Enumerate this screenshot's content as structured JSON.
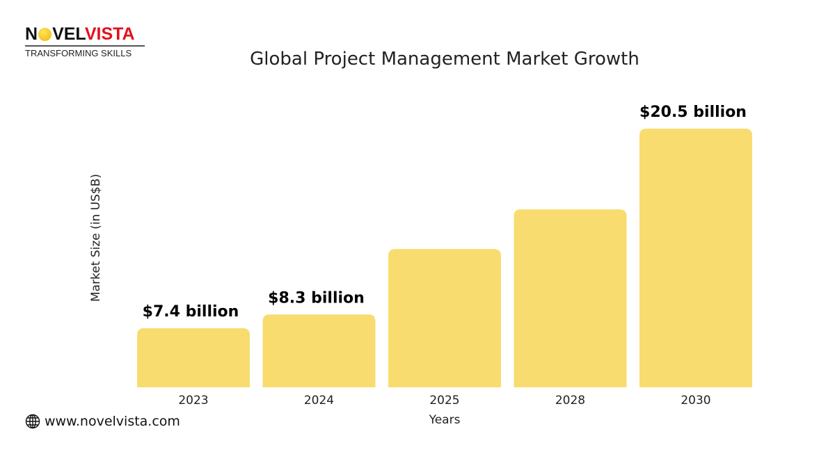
{
  "logo": {
    "name_part1": "N",
    "name_part2": "VEL",
    "name_part3": "VISTA",
    "tagline": "TRANSFORMING SKILLS"
  },
  "website": "www.novelvista.com",
  "chart_data": {
    "type": "bar",
    "title": "Global Project Management Market Growth",
    "xlabel": "Years",
    "ylabel": "Market Size (in US$B)",
    "categories": [
      "2023",
      "2024",
      "2025",
      "2028",
      "2030"
    ],
    "values": [
      7.4,
      8.3,
      12.6,
      15.2,
      20.5
    ],
    "data_labels": [
      "$7.4 billion",
      "$8.3 billion",
      "",
      "",
      "$20.5 billion"
    ],
    "bar_color": "#f9dc6f",
    "grid": false
  }
}
